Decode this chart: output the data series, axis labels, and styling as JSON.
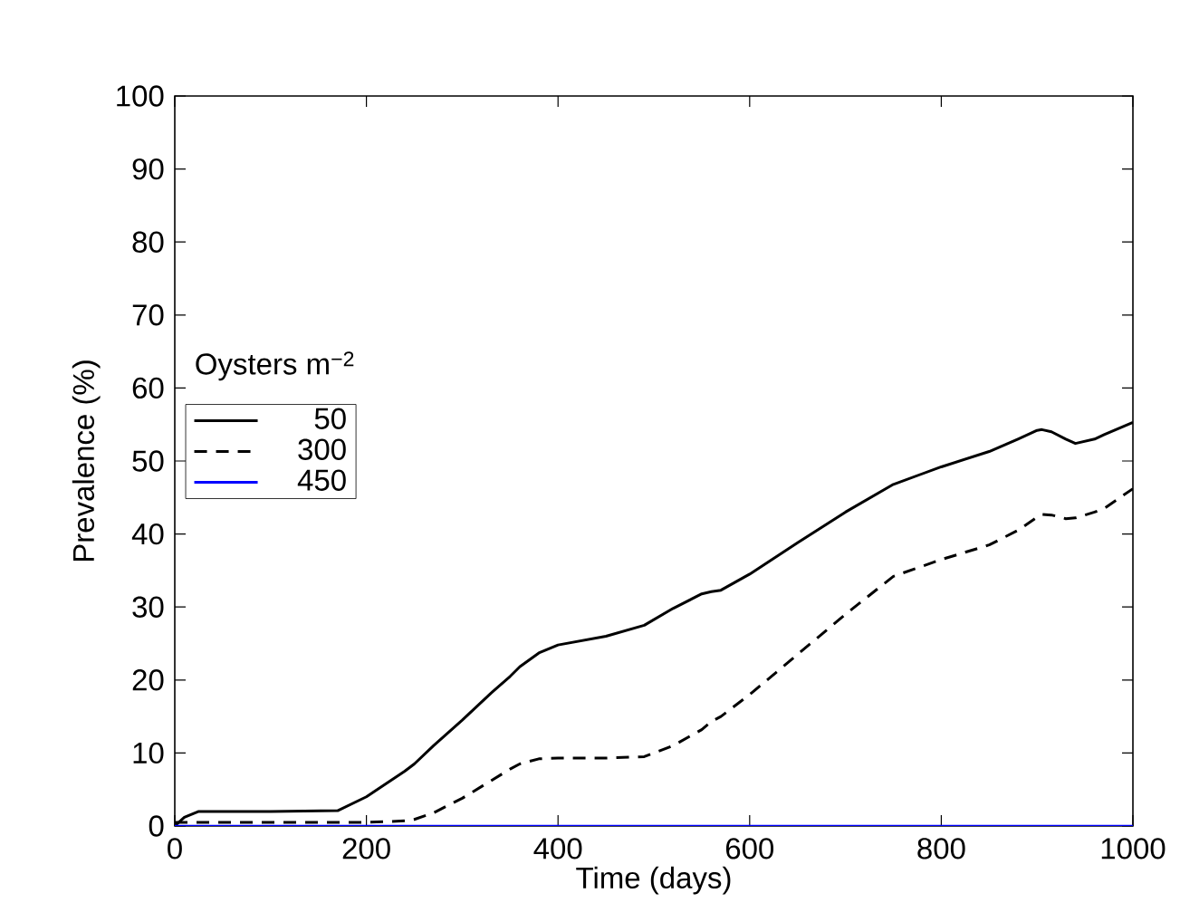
{
  "chart_data": {
    "type": "line",
    "xlabel": "Time (days)",
    "ylabel": "Prevalence (%)",
    "legend_title": "Oysters m$^{−2}$",
    "x": [
      0,
      10,
      25,
      100,
      170,
      200,
      240,
      250,
      270,
      300,
      330,
      350,
      360,
      380,
      400,
      450,
      490,
      520,
      550,
      560,
      570,
      600,
      650,
      700,
      750,
      800,
      850,
      880,
      900,
      905,
      915,
      930,
      940,
      960,
      970,
      1000
    ],
    "series": [
      {
        "name": "50",
        "color": "#000000",
        "line_style": "solid",
        "values": [
          0,
          1.2,
          2,
          2,
          2.1,
          4,
          7.5,
          8.5,
          11,
          14.5,
          18.2,
          20.5,
          21.8,
          23.7,
          24.8,
          26,
          27.5,
          29.8,
          31.8,
          32.1,
          32.3,
          34.5,
          38.8,
          43,
          46.8,
          49.2,
          51.3,
          53,
          54.2,
          54.3,
          54,
          53,
          52.4,
          53,
          53.6,
          55.3
        ]
      },
      {
        "name": "300",
        "color": "#000000",
        "line_style": "dashed",
        "values": [
          0.5,
          0.5,
          0.5,
          0.5,
          0.5,
          0.5,
          0.7,
          0.9,
          1.8,
          3.8,
          6.2,
          7.8,
          8.5,
          9.2,
          9.3,
          9.3,
          9.5,
          11,
          13.2,
          14.3,
          15,
          18,
          23.5,
          29,
          34.2,
          36.5,
          38.5,
          40.5,
          42.3,
          42.7,
          42.6,
          42.1,
          42.2,
          43,
          43.5,
          46.2
        ]
      },
      {
        "name": "450",
        "color": "#0000ff",
        "line_style": "solid",
        "values": [
          0,
          0,
          0,
          0,
          0,
          0,
          0,
          0,
          0,
          0,
          0,
          0,
          0,
          0,
          0,
          0,
          0,
          0,
          0,
          0,
          0,
          0,
          0,
          0,
          0,
          0,
          0,
          0,
          0,
          0,
          0,
          0,
          0,
          0,
          0,
          0
        ]
      }
    ],
    "xlim": [
      0,
      1000
    ],
    "ylim": [
      0,
      100
    ],
    "xticks": [
      0,
      200,
      400,
      600,
      800,
      1000
    ],
    "yticks": [
      0,
      10,
      20,
      30,
      40,
      50,
      60,
      70,
      80,
      90,
      100
    ],
    "legend": "left"
  }
}
